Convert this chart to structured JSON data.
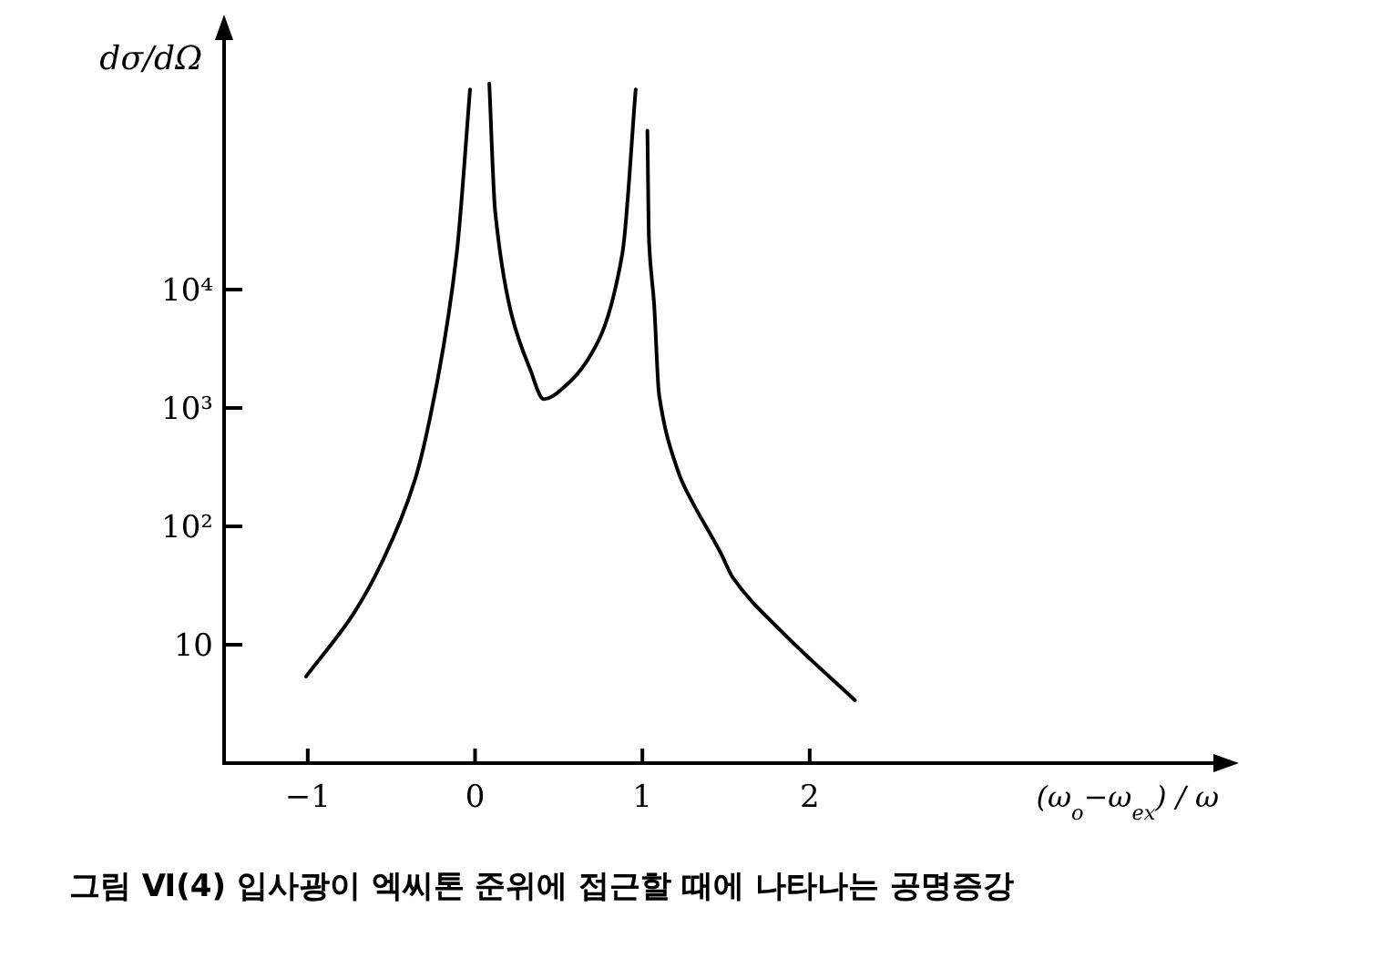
{
  "chart_data": {
    "type": "line",
    "log": true,
    "ylabel": "dσ/dΩ",
    "xlabel": "(ω$_{o}$−ω$_{ex}$) / ω",
    "annotations": [
      "그림 Ⅵ(4)  입사광이 엑씨톤 준위에 접근할 때에 나타나는 공명증강"
    ],
    "xlim": [
      -1.5,
      4.5
    ],
    "ylim": [
      1,
      1700000
    ],
    "xticks": [
      {
        "value": -1,
        "label": "−1"
      },
      0,
      1,
      2
    ],
    "yticks": [
      10,
      {
        "value": 100,
        "label": "10²"
      },
      {
        "value": 1000,
        "label": "10³"
      },
      {
        "value": 10000,
        "label": "10⁴"
      }
    ],
    "grid": false,
    "marker": "none",
    "line_style": "solid",
    "series": [
      {
        "color": "#000000",
        "x": [
          -1.01,
          -0.73,
          -0.55,
          -0.36,
          -0.22,
          -0.11,
          -0.03
        ],
        "values": [
          5.4,
          18,
          52,
          245,
          1860,
          20000,
          490000
        ]
      },
      {
        "color": "#000000",
        "x": [
          0.085,
          0.12,
          0.22,
          0.33,
          0.41,
          0.56,
          0.74,
          0.88,
          0.96
        ],
        "values": [
          550000,
          46000,
          6000,
          2100,
          1190,
          1630,
          3760,
          20000,
          490000
        ]
      },
      {
        "color": "#000000",
        "x": [
          1.03,
          1.04,
          1.07,
          1.1,
          1.21,
          1.25,
          1.47,
          1.54,
          1.84,
          2.27
        ],
        "values": [
          220000,
          25000,
          7600,
          1290,
          300,
          218,
          59,
          37,
          12.6,
          3.4
        ]
      }
    ]
  }
}
